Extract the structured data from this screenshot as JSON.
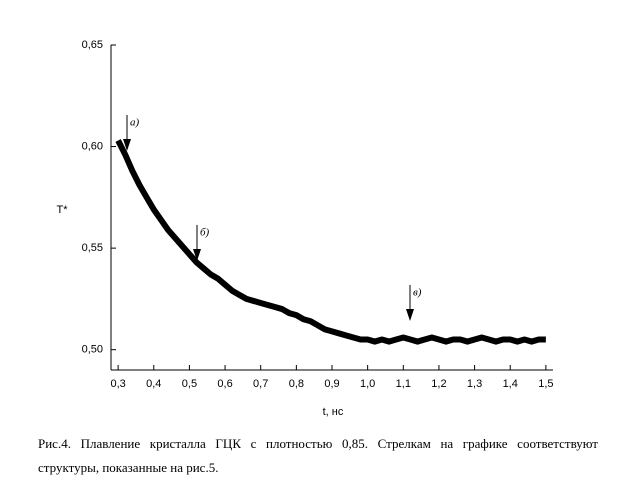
{
  "chart_data": {
    "type": "line",
    "x_label": "t, нс",
    "y_label": "T*",
    "x": [
      0.3,
      0.32,
      0.34,
      0.36,
      0.38,
      0.4,
      0.42,
      0.44,
      0.46,
      0.48,
      0.5,
      0.52,
      0.54,
      0.56,
      0.58,
      0.6,
      0.62,
      0.64,
      0.66,
      0.68,
      0.7,
      0.72,
      0.74,
      0.76,
      0.78,
      0.8,
      0.82,
      0.84,
      0.86,
      0.88,
      0.9,
      0.92,
      0.94,
      0.96,
      0.98,
      1.0,
      1.02,
      1.04,
      1.06,
      1.08,
      1.1,
      1.12,
      1.14,
      1.16,
      1.18,
      1.2,
      1.22,
      1.24,
      1.26,
      1.28,
      1.3,
      1.32,
      1.34,
      1.36,
      1.38,
      1.4,
      1.42,
      1.44,
      1.46,
      1.48,
      1.5
    ],
    "series": [
      {
        "name": "T*",
        "color": "#000000",
        "values": [
          0.603,
          0.596,
          0.588,
          0.581,
          0.575,
          0.569,
          0.564,
          0.559,
          0.555,
          0.551,
          0.547,
          0.543,
          0.54,
          0.537,
          0.535,
          0.532,
          0.529,
          0.527,
          0.525,
          0.524,
          0.523,
          0.522,
          0.521,
          0.52,
          0.518,
          0.517,
          0.515,
          0.514,
          0.512,
          0.51,
          0.509,
          0.508,
          0.507,
          0.506,
          0.505,
          0.505,
          0.504,
          0.505,
          0.504,
          0.505,
          0.506,
          0.505,
          0.504,
          0.505,
          0.506,
          0.505,
          0.504,
          0.505,
          0.505,
          0.504,
          0.505,
          0.506,
          0.505,
          0.504,
          0.505,
          0.505,
          0.504,
          0.505,
          0.504,
          0.505,
          0.505
        ]
      }
    ],
    "xlim": [
      0.28,
      1.52
    ],
    "ylim": [
      0.49,
      0.65
    ],
    "xticks": [
      {
        "value": 0.3,
        "label": "0,3"
      },
      {
        "value": 0.4,
        "label": "0,4"
      },
      {
        "value": 0.5,
        "label": "0,5"
      },
      {
        "value": 0.6,
        "label": "0,6"
      },
      {
        "value": 0.7,
        "label": "0,7"
      },
      {
        "value": 0.8,
        "label": "0,8"
      },
      {
        "value": 0.9,
        "label": "0,9"
      },
      {
        "value": 1.0,
        "label": "1,0"
      },
      {
        "value": 1.1,
        "label": "1,1"
      },
      {
        "value": 1.2,
        "label": "1,2"
      },
      {
        "value": 1.3,
        "label": "1,3"
      },
      {
        "value": 1.4,
        "label": "1,4"
      },
      {
        "value": 1.5,
        "label": "1,5"
      }
    ],
    "yticks": [
      {
        "value": 0.5,
        "label": "0,50"
      },
      {
        "value": 0.55,
        "label": "0,55"
      },
      {
        "value": 0.6,
        "label": "0,60"
      },
      {
        "value": 0.65,
        "label": "0,65"
      }
    ],
    "annotations": [
      "а)",
      "б)",
      "в)"
    ],
    "caption": "Рис.4. Плавление кристалла ГЦК с плотностью 0,85. Стрелкам на графике соответствуют структуры, показанные на рис.5."
  }
}
